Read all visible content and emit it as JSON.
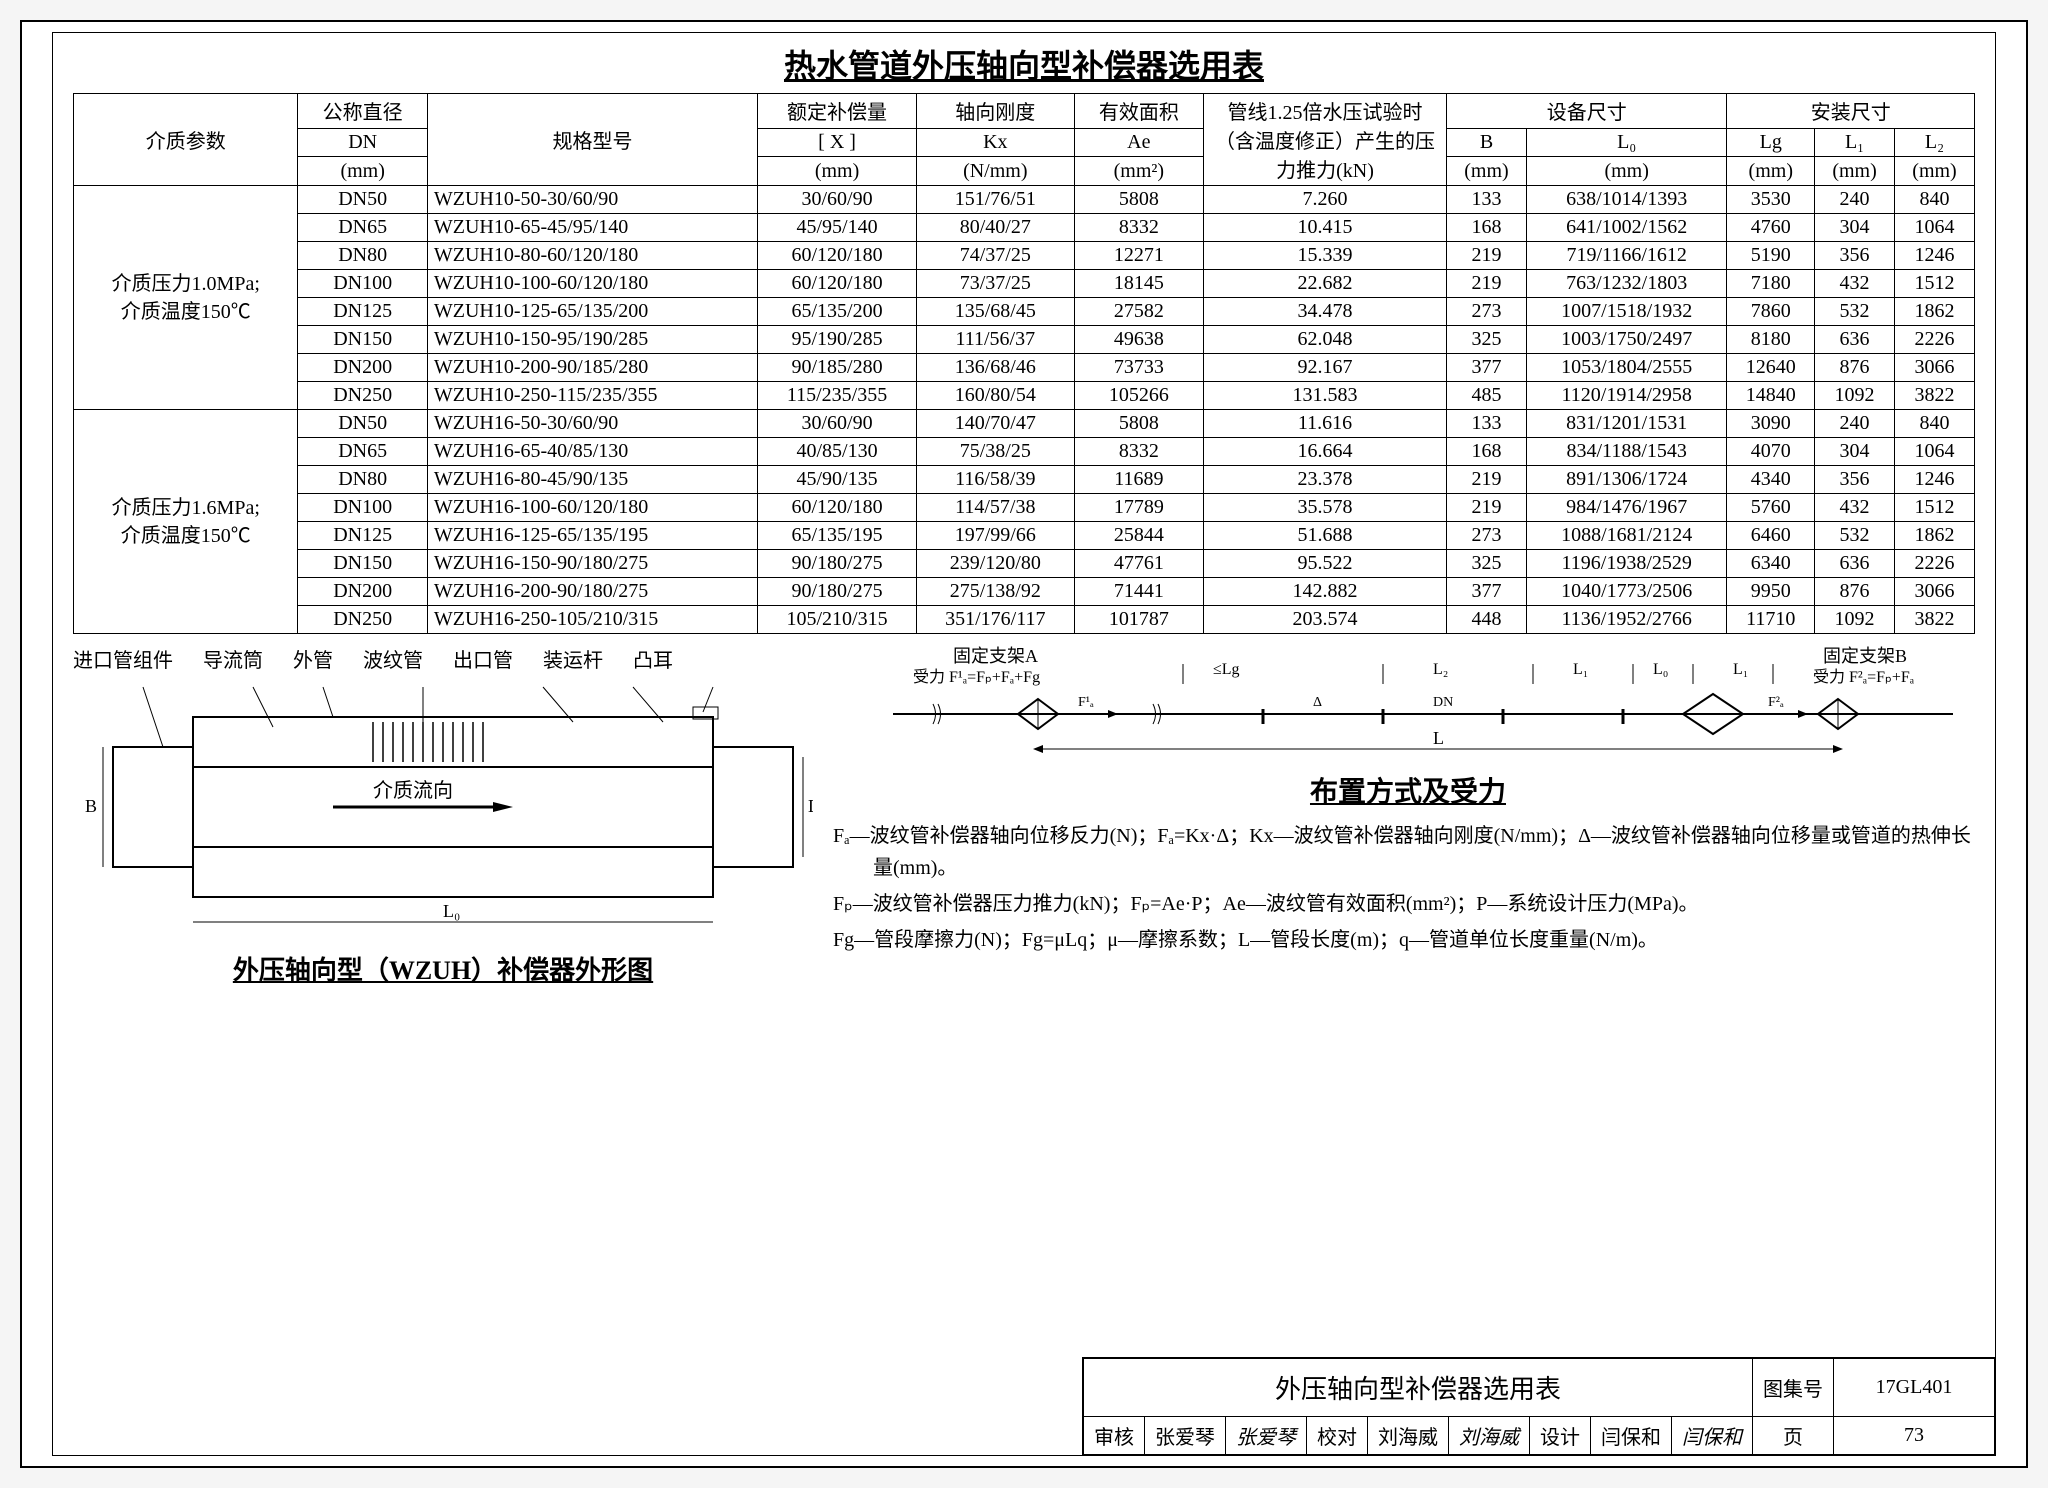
{
  "title": "热水管道外压轴向型补偿器选用表",
  "headers": {
    "param": "介质参数",
    "dn": "公称直径",
    "dn_unit": "DN",
    "dn_mm": "(mm)",
    "model": "规格型号",
    "comp": "额定补偿量",
    "comp_sym": "[ X ]",
    "comp_unit": "(mm)",
    "kx": "轴向刚度",
    "kx_sym": "Kx",
    "kx_unit": "(N/mm)",
    "ae": "有效面积",
    "ae_sym": "Ae",
    "ae_unit": "(mm²)",
    "pressure": "管线1.25倍水压试验时（含温度修正）产生的压力推力(kN)",
    "equip": "设备尺寸",
    "install": "安装尺寸",
    "B": "B",
    "B_unit": "(mm)",
    "L0": "L₀",
    "L0_unit": "(mm)",
    "Lg": "Lg",
    "Lg_unit": "(mm)",
    "L1": "L₁",
    "L1_unit": "(mm)",
    "L2": "L₂",
    "L2_unit": "(mm)"
  },
  "group1_label": "介质压力1.0MPa;介质温度150℃",
  "group2_label": "介质压力1.6MPa;介质温度150℃",
  "group1": [
    [
      "DN50",
      "WZUH10-50-30/60/90",
      "30/60/90",
      "151/76/51",
      "5808",
      "7.260",
      "133",
      "638/1014/1393",
      "3530",
      "240",
      "840"
    ],
    [
      "DN65",
      "WZUH10-65-45/95/140",
      "45/95/140",
      "80/40/27",
      "8332",
      "10.415",
      "168",
      "641/1002/1562",
      "4760",
      "304",
      "1064"
    ],
    [
      "DN80",
      "WZUH10-80-60/120/180",
      "60/120/180",
      "74/37/25",
      "12271",
      "15.339",
      "219",
      "719/1166/1612",
      "5190",
      "356",
      "1246"
    ],
    [
      "DN100",
      "WZUH10-100-60/120/180",
      "60/120/180",
      "73/37/25",
      "18145",
      "22.682",
      "219",
      "763/1232/1803",
      "7180",
      "432",
      "1512"
    ],
    [
      "DN125",
      "WZUH10-125-65/135/200",
      "65/135/200",
      "135/68/45",
      "27582",
      "34.478",
      "273",
      "1007/1518/1932",
      "7860",
      "532",
      "1862"
    ],
    [
      "DN150",
      "WZUH10-150-95/190/285",
      "95/190/285",
      "111/56/37",
      "49638",
      "62.048",
      "325",
      "1003/1750/2497",
      "8180",
      "636",
      "2226"
    ],
    [
      "DN200",
      "WZUH10-200-90/185/280",
      "90/185/280",
      "136/68/46",
      "73733",
      "92.167",
      "377",
      "1053/1804/2555",
      "12640",
      "876",
      "3066"
    ],
    [
      "DN250",
      "WZUH10-250-115/235/355",
      "115/235/355",
      "160/80/54",
      "105266",
      "131.583",
      "485",
      "1120/1914/2958",
      "14840",
      "1092",
      "3822"
    ]
  ],
  "group2": [
    [
      "DN50",
      "WZUH16-50-30/60/90",
      "30/60/90",
      "140/70/47",
      "5808",
      "11.616",
      "133",
      "831/1201/1531",
      "3090",
      "240",
      "840"
    ],
    [
      "DN65",
      "WZUH16-65-40/85/130",
      "40/85/130",
      "75/38/25",
      "8332",
      "16.664",
      "168",
      "834/1188/1543",
      "4070",
      "304",
      "1064"
    ],
    [
      "DN80",
      "WZUH16-80-45/90/135",
      "45/90/135",
      "116/58/39",
      "11689",
      "23.378",
      "219",
      "891/1306/1724",
      "4340",
      "356",
      "1246"
    ],
    [
      "DN100",
      "WZUH16-100-60/120/180",
      "60/120/180",
      "114/57/38",
      "17789",
      "35.578",
      "219",
      "984/1476/1967",
      "5760",
      "432",
      "1512"
    ],
    [
      "DN125",
      "WZUH16-125-65/135/195",
      "65/135/195",
      "197/99/66",
      "25844",
      "51.688",
      "273",
      "1088/1681/2124",
      "6460",
      "532",
      "1862"
    ],
    [
      "DN150",
      "WZUH16-150-90/180/275",
      "90/180/275",
      "239/120/80",
      "47761",
      "95.522",
      "325",
      "1196/1938/2529",
      "6340",
      "636",
      "2226"
    ],
    [
      "DN200",
      "WZUH16-200-90/180/275",
      "90/180/275",
      "275/138/92",
      "71441",
      "142.882",
      "377",
      "1040/1773/2506",
      "9950",
      "876",
      "3066"
    ],
    [
      "DN250",
      "WZUH16-250-105/210/315",
      "105/210/315",
      "351/176/117",
      "101787",
      "203.574",
      "448",
      "1136/1952/2766",
      "11710",
      "1092",
      "3822"
    ]
  ],
  "schematic": {
    "labels": [
      "进口管组件",
      "导流筒",
      "外管",
      "波纹管",
      "出口管",
      "装运杆",
      "凸耳"
    ],
    "flow": "介质流向",
    "B": "B",
    "DN": "DN",
    "L0": "L₀",
    "caption": "外压轴向型（WZUH）补偿器外形图"
  },
  "layout": {
    "fixA": "固定支架A",
    "forceA": "受力 F¹ₐ=Fₚ+Fₐ+Fg",
    "fixB": "固定支架B",
    "forceB": "受力 F²ₐ=Fₚ+Fₐ",
    "lg": "≤Lg",
    "l2": "L₂",
    "l1": "L₁",
    "l0": "L₀",
    "l1b": "L₁",
    "dn": "DN",
    "delta": "Δ",
    "f1": "F¹ₐ",
    "f2": "F²ₐ",
    "L": "L",
    "caption": "布置方式及受力"
  },
  "notes": {
    "n1": "Fₐ—波纹管补偿器轴向位移反力(N)；Fₐ=Kx·Δ；Kx—波纹管补偿器轴向刚度(N/mm)；Δ—波纹管补偿器轴向位移量或管道的热伸长量(mm)。",
    "n2": "Fₚ—波纹管补偿器压力推力(kN)；Fₚ=Ae·P；Ae—波纹管有效面积(mm²)；P—系统设计压力(MPa)。",
    "n3": "Fg—管段摩擦力(N)；Fg=μLq；μ—摩擦系数；L—管段长度(m)；q—管道单位长度重量(N/m)。"
  },
  "titleblock": {
    "doc_title": "外压轴向型补偿器选用表",
    "set_label": "图集号",
    "set_no": "17GL401",
    "review": "审核",
    "reviewer": "张爱琴",
    "rsign": "张爱琴",
    "check": "校对",
    "checker": "刘海威",
    "csign": "刘海威",
    "design": "设计",
    "designer": "闫保和",
    "dsign": "闫保和",
    "page_label": "页",
    "page_no": "73"
  }
}
